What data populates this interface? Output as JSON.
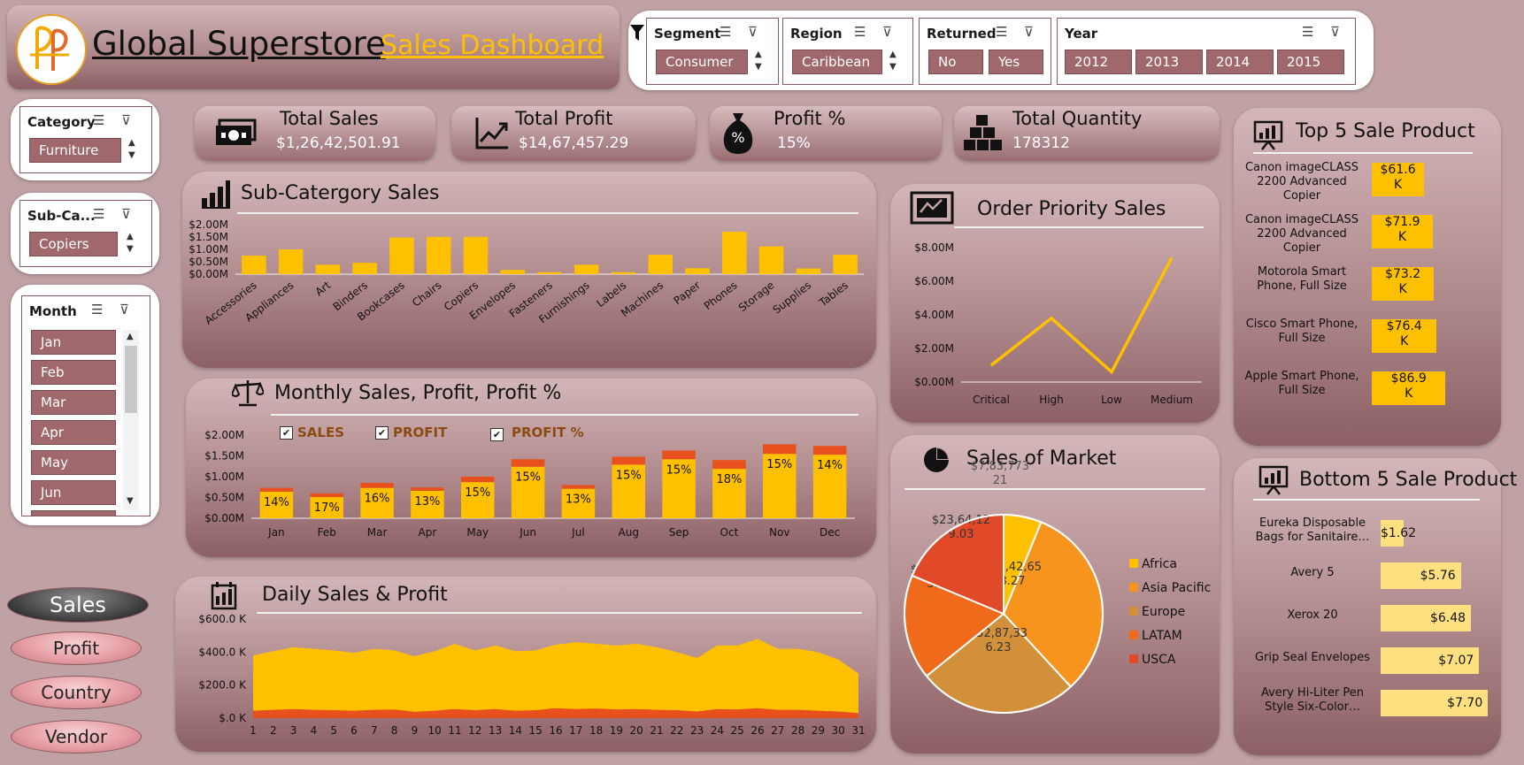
{
  "header": {
    "title": "Global Superstore",
    "subtitle": "Sales Dashboard"
  },
  "filters": {
    "segment": {
      "label": "Segment",
      "value": "Consumer"
    },
    "region": {
      "label": "Region",
      "value": "Caribbean"
    },
    "returned": {
      "label": "Returned",
      "options": [
        "No",
        "Yes"
      ]
    },
    "year": {
      "label": "Year",
      "options": [
        "2012",
        "2013",
        "2014",
        "2015"
      ]
    }
  },
  "side_slicers": {
    "category": {
      "label": "Category",
      "value": "Furniture"
    },
    "subcategory": {
      "label": "Sub-Ca...",
      "value": "Copiers"
    },
    "month": {
      "label": "Month",
      "items": [
        "Jan",
        "Feb",
        "Mar",
        "Apr",
        "May",
        "Jun"
      ]
    }
  },
  "nav": {
    "sales": "Sales",
    "profit": "Profit",
    "country": "Country",
    "vendor": "Vendor"
  },
  "kpis": [
    {
      "label": "Total Sales",
      "value": "$1,26,42,501.91",
      "icon": "money-icon"
    },
    {
      "label": "Total Profit",
      "value": "$14,67,457.29",
      "icon": "trend-up-icon"
    },
    {
      "label": "Profit %",
      "value": "15%",
      "icon": "money-bag-icon"
    },
    {
      "label": "Total Quantity",
      "value": "178312",
      "icon": "boxes-icon"
    }
  ],
  "kpi_icon_glyphs": {
    "profit_bag": "%"
  },
  "sections": {
    "subcat": "Sub-Catergory Sales",
    "monthly": "Monthly Sales, Profit, Profit %",
    "daily": "Daily Sales & Profit",
    "priority": "Order Priority Sales",
    "market": "Sales of Market",
    "top5": "Top 5 Sale Product",
    "bottom5": "Bottom 5 Sale Product"
  },
  "colors": {
    "sales": "#ffc000",
    "profit": "#e8501e",
    "card_dark": "#8c6064"
  },
  "chart_data": [
    {
      "id": "subcategory",
      "type": "bar",
      "categories": [
        "Accessories",
        "Appliances",
        "Art",
        "Binders",
        "Bookcases",
        "Chairs",
        "Copiers",
        "Envelopes",
        "Fasteners",
        "Furnishings",
        "Labels",
        "Machines",
        "Paper",
        "Phones",
        "Storage",
        "Supplies",
        "Tables"
      ],
      "values": [
        0.75,
        1.0,
        0.38,
        0.46,
        1.48,
        1.51,
        1.51,
        0.17,
        0.08,
        0.38,
        0.08,
        0.78,
        0.24,
        1.71,
        1.12,
        0.23,
        0.78
      ],
      "ylim": [
        0,
        2.0
      ],
      "yticks": [
        "$0.00M",
        "$0.50M",
        "$1.00M",
        "$1.50M",
        "$2.00M"
      ],
      "ytick_values": [
        0,
        0.5,
        1.0,
        1.5,
        2.0
      ]
    },
    {
      "id": "monthly",
      "type": "bar",
      "categories": [
        "Jan",
        "Feb",
        "Mar",
        "Apr",
        "May",
        "Jun",
        "Jul",
        "Aug",
        "Sep",
        "Oct",
        "Nov",
        "Dec"
      ],
      "series": [
        {
          "name": "SALES",
          "values": [
            0.64,
            0.51,
            0.73,
            0.66,
            0.87,
            1.24,
            0.71,
            1.29,
            1.42,
            1.19,
            1.55,
            1.53
          ]
        },
        {
          "name": "PROFIT",
          "values": [
            0.09,
            0.09,
            0.12,
            0.08,
            0.13,
            0.18,
            0.09,
            0.19,
            0.21,
            0.21,
            0.23,
            0.21
          ]
        }
      ],
      "labels": [
        "14%",
        "17%",
        "16%",
        "13%",
        "15%",
        "15%",
        "13%",
        "15%",
        "15%",
        "18%",
        "15%",
        "14%"
      ],
      "legend": [
        "SALES",
        "PROFIT",
        "PROFIT %"
      ],
      "ylim": [
        0,
        2.0
      ],
      "yticks": [
        "$0.00M",
        "$0.50M",
        "$1.00M",
        "$1.50M",
        "$2.00M"
      ],
      "ytick_values": [
        0,
        0.5,
        1.0,
        1.5,
        2.0
      ]
    },
    {
      "id": "daily",
      "type": "area",
      "x": [
        1,
        2,
        3,
        4,
        5,
        6,
        7,
        8,
        9,
        10,
        11,
        12,
        13,
        14,
        15,
        16,
        17,
        18,
        19,
        20,
        21,
        22,
        23,
        24,
        25,
        26,
        27,
        28,
        29,
        30,
        31
      ],
      "series": [
        {
          "name": "Sales",
          "values": [
            380,
            405,
            430,
            420,
            410,
            395,
            420,
            410,
            375,
            405,
            450,
            410,
            440,
            405,
            410,
            445,
            460,
            450,
            440,
            450,
            430,
            400,
            365,
            440,
            440,
            480,
            420,
            420,
            400,
            355,
            270
          ]
        },
        {
          "name": "Profit",
          "values": [
            45,
            50,
            55,
            50,
            48,
            45,
            50,
            52,
            38,
            45,
            55,
            48,
            55,
            45,
            48,
            60,
            55,
            58,
            52,
            55,
            50,
            48,
            40,
            55,
            52,
            60,
            50,
            50,
            45,
            40,
            30
          ]
        }
      ],
      "ylim": [
        0,
        600
      ],
      "yticks": [
        "$.0 K",
        "$200.0 K",
        "$400.0 K",
        "$600.0 K"
      ],
      "ytick_values": [
        0,
        200,
        400,
        600
      ]
    },
    {
      "id": "priority",
      "type": "line",
      "categories": [
        "Critical",
        "High",
        "Low",
        "Medium"
      ],
      "values": [
        1.0,
        3.8,
        0.6,
        7.4
      ],
      "ylim": [
        0,
        8.0
      ],
      "yticks": [
        "$0.00M",
        "$2.00M",
        "$4.00M",
        "$6.00M",
        "$8.00M"
      ],
      "ytick_values": [
        0,
        2,
        4,
        6,
        8
      ]
    },
    {
      "id": "market",
      "type": "pie",
      "categories": [
        "Africa",
        "Asia Pacific",
        "Europe",
        "LATAM",
        "USCA"
      ],
      "values": [
        783773.21,
        4042658.27,
        3287336.23,
        2164605.17,
        2364129.03
      ],
      "labels": [
        "$7,83,773\n21",
        "$40,42,65\n8.27",
        "$32,87,33\n6.23",
        "$21,64,60\n5.17",
        "$23,64,12\n9.03"
      ],
      "colors": [
        "#ffc000",
        "#f7941d",
        "#d2903a",
        "#ef6a1a",
        "#e04a28"
      ]
    },
    {
      "id": "top5",
      "type": "bar",
      "categories": [
        "Canon imageCLASS 2200 Advanced Copier",
        "Canon imageCLASS 2200 Advanced Copier",
        "Motorola Smart Phone, Full Size",
        "Cisco Smart Phone, Full Size",
        "Apple Smart Phone, Full Size"
      ],
      "values": [
        61.6,
        71.9,
        73.2,
        76.4,
        86.9
      ],
      "labels": [
        "$61.6\nK",
        "$71.9\nK",
        "$73.2\nK",
        "$76.4\nK",
        "$86.9\nK"
      ]
    },
    {
      "id": "bottom5",
      "type": "bar",
      "categories": [
        "Eureka Disposable Bags for Sanitaire…",
        "Avery 5",
        "Xerox 20",
        "Grip Seal Envelopes",
        "Avery Hi-Liter Pen Style Six-Color…"
      ],
      "values": [
        1.62,
        5.76,
        6.48,
        7.07,
        7.7
      ],
      "labels": [
        "$1.62",
        "$5.76",
        "$6.48",
        "$7.07",
        "$7.70"
      ]
    }
  ]
}
